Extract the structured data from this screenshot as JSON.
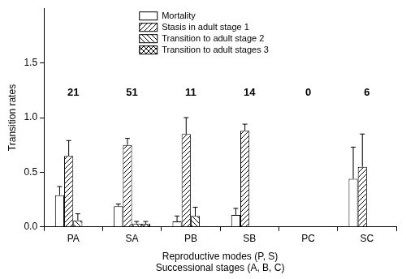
{
  "chart_data": {
    "type": "bar",
    "ylabel": "Transition rates",
    "xlabel": [
      "Reproductive modes (P, S)",
      "Successional stages (A, B, C)"
    ],
    "categories": [
      "PA",
      "SA",
      "PB",
      "SB",
      "PC",
      "SC"
    ],
    "series": [
      {
        "name": "Mortality",
        "color": "#000000",
        "values": [
          0.29,
          0.19,
          0.05,
          0.11,
          null,
          0.44
        ],
        "errors": [
          0.08,
          0.02,
          0.05,
          0.06,
          null,
          0.29
        ]
      },
      {
        "name": "Stasis in adult stage 1",
        "color": "#000000",
        "values": [
          0.65,
          0.75,
          0.85,
          0.88,
          null,
          0.55
        ],
        "errors": [
          0.14,
          0.06,
          0.15,
          0.06,
          null,
          0.3
        ]
      },
      {
        "name": "Transition to adult stage 2",
        "color": "#000000",
        "values": [
          0.06,
          0.03,
          0.1,
          0,
          null,
          0
        ],
        "errors": [
          0.06,
          0.02,
          0.08,
          0,
          null,
          0
        ]
      },
      {
        "name": "Transition to adult stages 3",
        "color": "#000000",
        "values": [
          0,
          0.03,
          0,
          0,
          null,
          0
        ],
        "errors": [
          0,
          0.02,
          0,
          0,
          null,
          0
        ]
      }
    ],
    "sample_sizes": [
      21,
      51,
      11,
      14,
      0,
      6
    ],
    "ylim": [
      0,
      2.0
    ],
    "yticks": [
      {
        "value": 0,
        "label": "0.0"
      },
      0.5,
      {
        "value": 1,
        "label": "1.0"
      },
      1.5
    ],
    "grid": false,
    "legend": "top"
  }
}
